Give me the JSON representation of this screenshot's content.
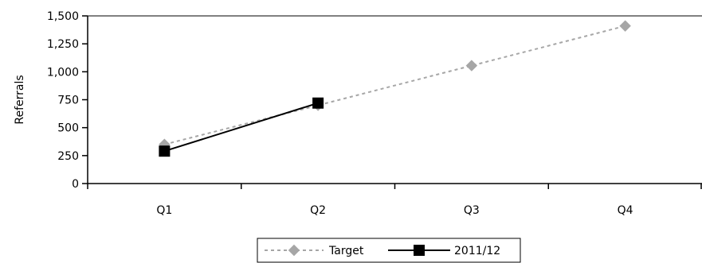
{
  "chart_data": {
    "type": "line",
    "title": "",
    "xlabel": "",
    "ylabel": "Referrals",
    "categories": [
      "Q1",
      "Q2",
      "Q3",
      "Q4"
    ],
    "ylim": [
      0,
      1500
    ],
    "yticks": [
      0,
      250,
      500,
      750,
      1000,
      1250,
      1500
    ],
    "ytick_labels": [
      "0",
      "250",
      "500",
      "750",
      "1,000",
      "1,250",
      "1,500"
    ],
    "grid": false,
    "legend_placement": "bottom-center",
    "series": [
      {
        "name": "Target",
        "values": [
          350,
          700,
          1055,
          1410
        ],
        "color": "#a6a6a6",
        "marker": "diamond",
        "line_style": "dashed"
      },
      {
        "name": "2011/12",
        "values": [
          290,
          720,
          null,
          null
        ],
        "color": "#000000",
        "marker": "square",
        "line_style": "solid"
      }
    ]
  }
}
